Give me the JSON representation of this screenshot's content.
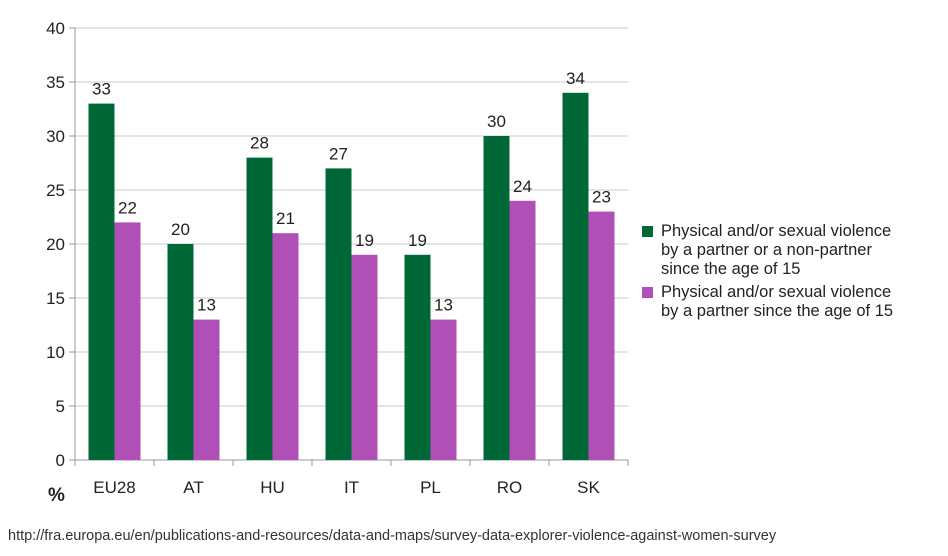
{
  "chart_data": {
    "type": "bar",
    "categories": [
      "EU28",
      "AT",
      "HU",
      "IT",
      "PL",
      "RO",
      "SK"
    ],
    "series": [
      {
        "name": "Physical and/or sexual violence by a partner or a non-partner since the age of 15",
        "name_lines": [
          "Physical and/or sexual violence",
          "by a partner or a non-partner",
          "since the age of 15"
        ],
        "values": [
          33,
          20,
          28,
          27,
          19,
          30,
          34
        ],
        "color": "#006837"
      },
      {
        "name": "Physical and/or sexual violence by a partner since the age of 15",
        "name_lines": [
          "Physical and/or sexual violence",
          "by a partner since the age of 15"
        ],
        "values": [
          22,
          13,
          21,
          19,
          13,
          24,
          23
        ],
        "color": "#b04fb5"
      }
    ],
    "ylabel": "%",
    "ylim": [
      0,
      40
    ],
    "yticks": [
      0,
      5,
      10,
      15,
      20,
      25,
      30,
      35,
      40
    ],
    "grid": true,
    "legend_position": "right"
  },
  "source_text": "http://fra.europa.eu/en/publications-and-resources/data-and-maps/survey-data-explorer-violence-against-women-survey"
}
